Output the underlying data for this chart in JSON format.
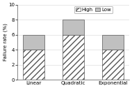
{
  "categories": [
    "Linear",
    "Quadratic",
    "Exponential"
  ],
  "high_values": [
    4,
    6,
    4
  ],
  "low_values": [
    2,
    2,
    2
  ],
  "high_color": "white",
  "high_hatch": "////",
  "low_color": "#c0c0c0",
  "low_hatch": "",
  "ylabel": "Failure rate (%)",
  "ylim": [
    0,
    10
  ],
  "yticks": [
    0,
    2,
    4,
    6,
    8,
    10
  ],
  "legend_labels": [
    "High",
    "Low"
  ],
  "bar_width": 0.55,
  "edgecolor": "#555555",
  "grid_color": "#dddddd"
}
